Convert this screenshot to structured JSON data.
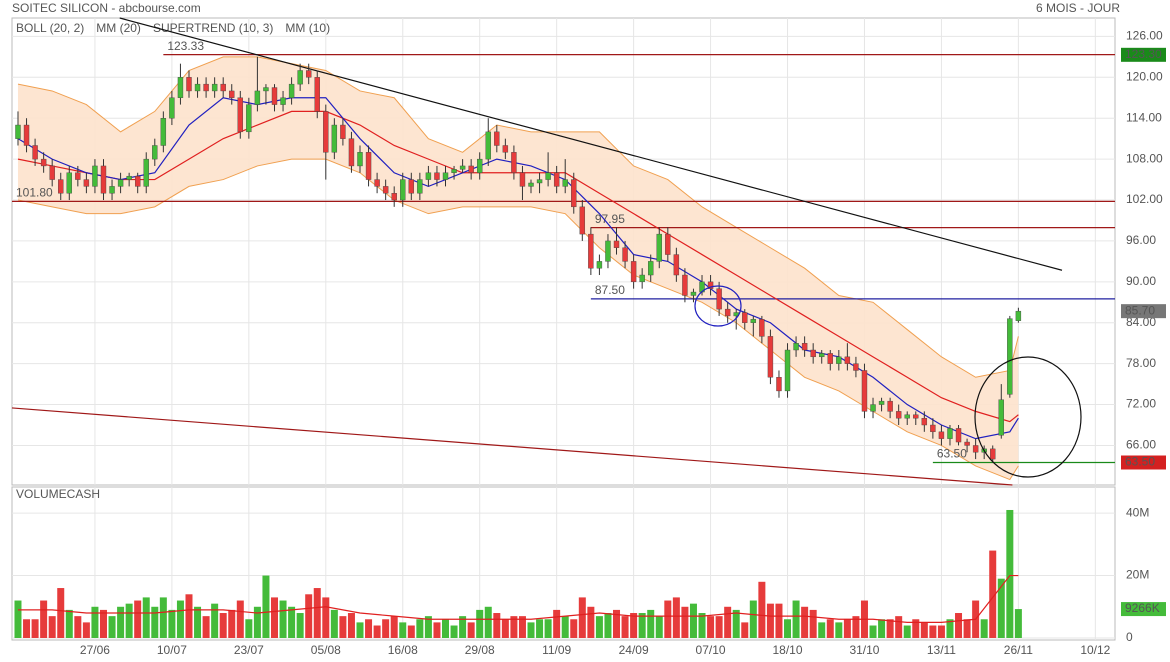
{
  "header": {
    "left": "SOITEC SILICON - abcbourse.com",
    "right": "6 MOIS - JOUR"
  },
  "chart_data": {
    "type": "candlestick",
    "legend": [
      {
        "name": "BOLL (20, 2)",
        "color": "#f0a050"
      },
      {
        "name": "MM (20)",
        "color": "#e02020"
      },
      {
        "name": "SUPERTREND (10, 3)",
        "color": "#f4b0b0"
      },
      {
        "name": "MM (10)",
        "color": "#2020c0"
      }
    ],
    "xlim": [
      -0.7,
      128.3
    ],
    "xticks": [
      {
        "value": 9,
        "label": "27/06"
      },
      {
        "value": 18,
        "label": "10/07"
      },
      {
        "value": 27,
        "label": "23/07"
      },
      {
        "value": 36,
        "label": "05/08"
      },
      {
        "value": 45,
        "label": "16/08"
      },
      {
        "value": 54,
        "label": "29/08"
      },
      {
        "value": 63,
        "label": "11/09"
      },
      {
        "value": 72,
        "label": "24/09"
      },
      {
        "value": 81,
        "label": "07/10"
      },
      {
        "value": 90,
        "label": "18/10"
      },
      {
        "value": 99,
        "label": "31/10"
      },
      {
        "value": 108,
        "label": "13/11"
      },
      {
        "value": 117,
        "label": "26/11"
      },
      {
        "value": 126,
        "label": "10/12"
      }
    ],
    "ylim": [
      60.2,
      128.7
    ],
    "yticks": [
      {
        "value": 126,
        "label": "126.00"
      },
      {
        "value": 120,
        "label": "120.00"
      },
      {
        "value": 114,
        "label": "114.00"
      },
      {
        "value": 108,
        "label": "108.00"
      },
      {
        "value": 102,
        "label": "102.00"
      },
      {
        "value": 96,
        "label": "96.00"
      },
      {
        "value": 90,
        "label": "90.00"
      },
      {
        "value": 84,
        "label": "84.00"
      },
      {
        "value": 78,
        "label": "78.00"
      },
      {
        "value": 72,
        "label": "72.00"
      },
      {
        "value": 66,
        "label": "66.00"
      }
    ],
    "grid": true,
    "up_color": "#44bb3a",
    "down_color": "#e63b3b",
    "candles": [
      [
        111,
        115,
        110,
        113
      ],
      [
        113,
        114,
        109,
        110
      ],
      [
        110,
        111,
        107,
        108
      ],
      [
        108,
        109,
        106,
        107
      ],
      [
        107,
        108,
        104,
        105
      ],
      [
        105,
        106,
        102,
        103
      ],
      [
        103,
        107,
        102,
        106
      ],
      [
        106,
        107,
        104,
        105
      ],
      [
        105,
        106,
        103,
        104
      ],
      [
        104,
        108,
        103,
        107
      ],
      [
        107,
        108,
        102,
        103
      ],
      [
        103,
        105,
        102,
        104
      ],
      [
        104,
        106,
        103,
        105
      ],
      [
        105,
        106,
        104,
        105.5
      ],
      [
        105.5,
        106,
        103,
        104
      ],
      [
        104,
        109,
        103,
        108
      ],
      [
        108,
        111,
        107,
        110
      ],
      [
        110,
        115,
        109,
        114
      ],
      [
        114,
        118,
        113,
        117
      ],
      [
        117,
        122,
        116,
        120
      ],
      [
        120,
        121,
        117,
        118
      ],
      [
        118,
        120,
        117,
        119
      ],
      [
        119,
        120,
        117,
        118
      ],
      [
        118,
        120,
        117,
        119
      ],
      [
        119,
        120,
        117,
        118
      ],
      [
        118,
        119,
        116,
        117
      ],
      [
        117,
        118,
        111,
        112
      ],
      [
        112,
        117,
        111,
        116
      ],
      [
        116,
        123,
        115,
        118
      ],
      [
        118,
        119,
        116,
        118.5
      ],
      [
        118.5,
        119,
        115,
        116
      ],
      [
        116,
        118,
        115,
        117
      ],
      [
        117,
        120,
        116,
        119
      ],
      [
        119,
        122,
        118,
        121
      ],
      [
        121,
        122,
        119,
        120
      ],
      [
        120,
        121,
        114,
        115
      ],
      [
        115,
        116,
        105,
        109
      ],
      [
        109,
        114,
        108,
        113
      ],
      [
        113,
        114,
        110,
        111
      ],
      [
        111,
        112,
        106,
        107
      ],
      [
        107,
        110,
        106,
        109
      ],
      [
        109,
        110,
        104,
        105
      ],
      [
        105,
        106,
        103,
        104
      ],
      [
        104,
        105,
        102,
        103
      ],
      [
        103,
        104,
        101,
        102
      ],
      [
        102,
        106,
        101,
        105
      ],
      [
        105,
        106,
        102,
        103
      ],
      [
        103,
        106,
        102,
        105
      ],
      [
        105,
        107,
        104,
        106
      ],
      [
        106,
        107,
        104,
        105
      ],
      [
        105,
        107,
        104,
        106
      ],
      [
        106,
        107,
        105,
        106.5
      ],
      [
        106.5,
        108,
        106,
        107
      ],
      [
        107,
        108,
        105,
        106
      ],
      [
        106,
        109,
        105,
        108
      ],
      [
        108,
        114,
        107,
        112
      ],
      [
        112,
        113,
        109,
        110
      ],
      [
        110,
        111,
        108,
        109
      ],
      [
        109,
        110,
        105,
        106
      ],
      [
        106,
        107,
        102,
        104
      ],
      [
        104,
        105,
        103,
        104.5
      ],
      [
        104.5,
        106,
        103,
        105
      ],
      [
        105,
        109,
        104,
        106
      ],
      [
        106,
        107,
        103,
        104
      ],
      [
        104,
        108,
        103,
        105
      ],
      [
        105,
        106,
        100,
        101
      ],
      [
        101,
        102,
        96,
        97
      ],
      [
        97,
        98,
        91,
        92
      ],
      [
        92,
        94,
        91,
        93
      ],
      [
        93,
        97,
        92,
        96
      ],
      [
        96,
        98,
        94,
        95
      ],
      [
        95,
        96,
        92,
        93
      ],
      [
        93,
        94,
        89,
        90
      ],
      [
        90,
        92,
        89,
        91
      ],
      [
        91,
        94,
        90,
        93
      ],
      [
        93,
        98,
        92,
        97
      ],
      [
        97,
        98,
        93,
        94
      ],
      [
        94,
        95,
        90,
        91
      ],
      [
        91,
        92,
        87,
        88
      ],
      [
        88,
        89,
        87,
        88.5
      ],
      [
        88.5,
        91,
        88,
        90
      ],
      [
        90,
        91,
        88,
        89
      ],
      [
        89,
        90,
        85,
        86
      ],
      [
        86,
        87,
        84,
        85
      ],
      [
        85,
        86,
        83,
        85.5
      ],
      [
        85.5,
        86,
        83,
        84
      ],
      [
        84,
        85,
        82,
        84.5
      ],
      [
        84.5,
        85,
        81,
        82
      ],
      [
        82,
        83,
        75,
        76
      ],
      [
        76,
        77,
        73,
        74
      ],
      [
        74,
        81,
        73,
        80
      ],
      [
        80,
        82,
        79,
        81
      ],
      [
        81,
        82,
        79,
        80
      ],
      [
        80,
        81,
        78,
        79
      ],
      [
        79,
        80,
        78,
        79.5
      ],
      [
        79.5,
        80,
        77,
        78
      ],
      [
        78,
        80,
        77,
        79
      ],
      [
        79,
        81,
        77,
        78
      ],
      [
        78,
        79,
        76,
        77
      ],
      [
        77,
        78,
        70,
        71
      ],
      [
        71,
        73,
        70,
        72
      ],
      [
        72,
        73,
        71,
        72.5
      ],
      [
        72.5,
        73,
        70,
        71
      ],
      [
        71,
        72,
        69,
        70
      ],
      [
        70,
        71,
        69,
        70.5
      ],
      [
        70.5,
        71,
        69,
        70
      ],
      [
        70,
        71,
        68,
        69
      ],
      [
        69,
        70,
        67,
        68
      ],
      [
        68,
        69,
        66,
        67
      ],
      [
        67,
        69,
        66,
        68.5
      ],
      [
        68.5,
        69,
        66,
        66.5
      ],
      [
        66.5,
        67,
        65,
        66
      ],
      [
        66,
        67,
        64,
        65
      ],
      [
        65,
        66,
        64,
        65.5
      ],
      [
        65.5,
        66,
        63.5,
        64
      ],
      [
        67.5,
        75,
        67,
        72.7
      ],
      [
        73.5,
        85,
        73,
        84.6
      ],
      [
        84.3,
        86.2,
        84,
        85.7
      ]
    ],
    "indicator_x": [
      0,
      4,
      8,
      12,
      16,
      20,
      24,
      28,
      32,
      36,
      40,
      44,
      48,
      52,
      56,
      60,
      64,
      68,
      72,
      76,
      80,
      84,
      88,
      92,
      96,
      100,
      104,
      108,
      112,
      116,
      117
    ],
    "boll_upper": [
      119,
      118,
      116,
      112,
      115,
      121,
      123,
      123,
      122,
      121,
      118,
      117,
      111,
      109,
      113,
      112,
      112,
      112,
      107,
      105,
      101,
      98,
      95,
      92,
      88,
      87,
      83,
      79,
      76,
      77,
      82
    ],
    "boll_lower": [
      102,
      101,
      100,
      100,
      101,
      104,
      105,
      107,
      108,
      108,
      106,
      102,
      100,
      101,
      101,
      101,
      100,
      95,
      91,
      89,
      87,
      84,
      80,
      76,
      74,
      71,
      68,
      66,
      63,
      61,
      63
    ],
    "mm20": [
      108,
      107,
      106,
      105,
      105,
      108,
      111,
      113,
      115,
      115,
      113,
      110,
      108,
      106,
      106,
      106,
      106,
      103,
      100,
      97,
      94,
      91,
      88,
      85,
      82,
      79,
      76,
      73,
      71,
      69.5,
      70.5
    ],
    "mm10": [
      111,
      108,
      106,
      105,
      106,
      113,
      117,
      116,
      117,
      117,
      111,
      106,
      104,
      106,
      108,
      107,
      105,
      100,
      94,
      93,
      90,
      86,
      84,
      80,
      79,
      76,
      72,
      69,
      67,
      68,
      70
    ],
    "levels": [
      {
        "value": 123.33,
        "label": "123.33",
        "from": 17,
        "color": "#a01818"
      },
      {
        "value": 101.8,
        "label": "101.80",
        "from": -0.7,
        "color": "#a01818"
      },
      {
        "value": 97.95,
        "label": "97.95",
        "from": 67,
        "color": "#a01818"
      },
      {
        "value": 87.5,
        "label": "87.50",
        "from": 67,
        "color": "#2020a0"
      },
      {
        "value": 63.5,
        "label": "63.50",
        "from": 107,
        "color": "#1a8a1a"
      }
    ],
    "trendlines": [
      {
        "x": [
          11.9,
          122.1
        ],
        "y": [
          128.7,
          91.7
        ],
        "color": "#111111"
      },
      {
        "x": [
          -0.7,
          116.3
        ],
        "y": [
          71.5,
          60.2
        ],
        "color": "#a01818"
      }
    ],
    "price_tags": [
      {
        "value": 123.3,
        "label": "123.30",
        "color": "#1a8a1a"
      },
      {
        "value": 85.7,
        "label": "85.70",
        "color": "#777777"
      },
      {
        "value": 63.5,
        "label": "63.50",
        "color": "#d42020"
      }
    ],
    "volume": {
      "title": "VOLUMECASH",
      "ylim": [
        0,
        45.8
      ],
      "yticks": [
        {
          "value": 40,
          "label": "40M"
        },
        {
          "value": 20,
          "label": "20M"
        },
        0
      ],
      "values": [
        12,
        6,
        6,
        12,
        7,
        16,
        9,
        7,
        5,
        10,
        9,
        7,
        10,
        11,
        12,
        13,
        10,
        13,
        9,
        12,
        14,
        10,
        7,
        11,
        8,
        9,
        12,
        6,
        10,
        20,
        13,
        12,
        10,
        8,
        14,
        16,
        13,
        9,
        7,
        8,
        5,
        6,
        4,
        6,
        7,
        5,
        4,
        6,
        7,
        5,
        6,
        4,
        7,
        5,
        9,
        10,
        8,
        6,
        7,
        7,
        5,
        6,
        6,
        9,
        7,
        6,
        13,
        10,
        7,
        8,
        9,
        7,
        8,
        8,
        9,
        7,
        12,
        13,
        10,
        11,
        8,
        7,
        7,
        10,
        9,
        5,
        12,
        18,
        11,
        11,
        6,
        12,
        10,
        9,
        5,
        6,
        5,
        6,
        7,
        12,
        4,
        6,
        6,
        7,
        4,
        6,
        5,
        4,
        4,
        6,
        8,
        6,
        12,
        6,
        28,
        19,
        41,
        9.266
      ],
      "value_labels": {
        "117": "9266K"
      },
      "ma_x": [
        0,
        4,
        8,
        12,
        16,
        20,
        24,
        28,
        32,
        36,
        40,
        44,
        48,
        52,
        56,
        60,
        64,
        68,
        72,
        76,
        80,
        84,
        88,
        92,
        96,
        100,
        104,
        108,
        112,
        116,
        117
      ],
      "ma": [
        9,
        9,
        8,
        8,
        8,
        9,
        9,
        8,
        9,
        10,
        8,
        7,
        6,
        6,
        6,
        6,
        7,
        8,
        7,
        7,
        7,
        8,
        7,
        7,
        6,
        6,
        5,
        5,
        6,
        20,
        20
      ],
      "ma_color": "#e02020"
    }
  }
}
